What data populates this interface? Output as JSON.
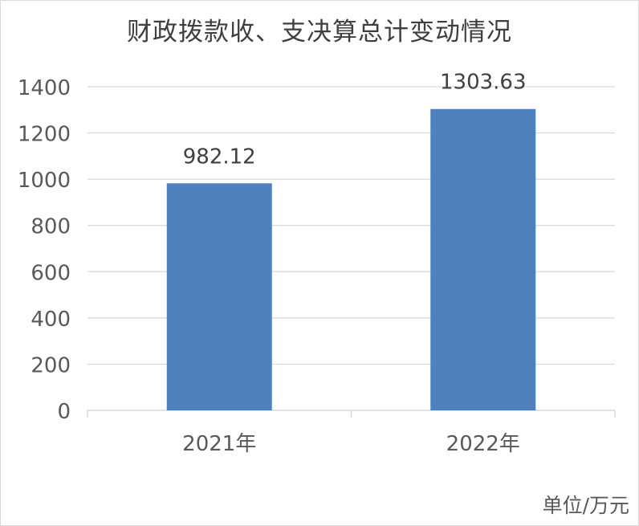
{
  "chart_data": {
    "type": "bar",
    "title": "财政拨款收、支决算总计变动情况",
    "categories": [
      "2021年",
      "2022年"
    ],
    "values": [
      982.12,
      1303.63
    ],
    "data_labels": [
      "982.12",
      "1303.63"
    ],
    "ylim": [
      0,
      1400
    ],
    "yticks": [
      0,
      200,
      400,
      600,
      800,
      1000,
      1200,
      1400
    ],
    "grid": true,
    "bar_color": "#4f81bd",
    "unit_note": "单位/万元"
  }
}
